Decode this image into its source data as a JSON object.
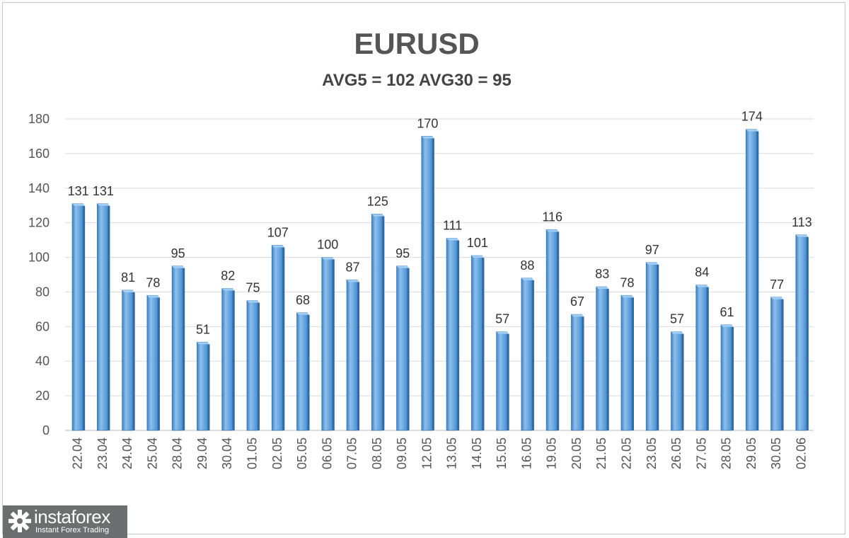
{
  "chart_data": {
    "type": "bar",
    "title": "EURUSD",
    "subtitle": "AVG5 = 102 AVG30 = 95",
    "categories": [
      "22.04",
      "23.04",
      "24.04",
      "25.04",
      "28.04",
      "29.04",
      "30.04",
      "01.05",
      "02.05",
      "05.05",
      "06.05",
      "07.05",
      "08.05",
      "09.05",
      "12.05",
      "13.05",
      "14.05",
      "15.05",
      "16.05",
      "19.05",
      "20.05",
      "21.05",
      "22.05",
      "23.05",
      "26.05",
      "27.05",
      "28.05",
      "29.05",
      "30.05",
      "02.06"
    ],
    "values": [
      131,
      131,
      81,
      78,
      95,
      51,
      82,
      75,
      107,
      68,
      100,
      87,
      125,
      95,
      170,
      111,
      101,
      57,
      88,
      116,
      67,
      83,
      78,
      97,
      57,
      84,
      61,
      174,
      77,
      113
    ],
    "ylim": [
      0,
      180
    ],
    "yticks": [
      0,
      20,
      40,
      60,
      80,
      100,
      120,
      140,
      160,
      180
    ],
    "grid": true,
    "bar_color": "#5b9bd5",
    "xlabel": "",
    "ylabel": ""
  },
  "logo": {
    "name": "instaforex",
    "tagline": "Instant Forex Trading"
  }
}
